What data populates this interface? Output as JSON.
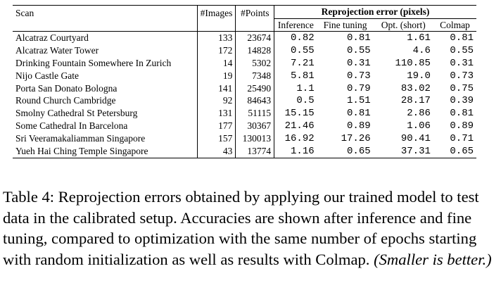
{
  "table": {
    "headers": {
      "scan": "Scan",
      "images": "#Images",
      "points": "#Points",
      "group": "Reprojection error (pixels)",
      "inference": "Inference",
      "fine_tuning": "Fine tuning",
      "opt_short": "Opt. (short)",
      "colmap": "Colmap"
    },
    "rows": [
      {
        "scan": "Alcatraz Courtyard",
        "images": "133",
        "points": "23674",
        "inference": "0.82",
        "fine_tuning": "0.81",
        "opt_short": "1.61",
        "colmap": "0.81"
      },
      {
        "scan": "Alcatraz Water Tower",
        "images": "172",
        "points": "14828",
        "inference": "0.55",
        "fine_tuning": "0.55",
        "opt_short": "4.6",
        "colmap": "0.55"
      },
      {
        "scan": "Drinking Fountain Somewhere In Zurich",
        "images": "14",
        "points": "5302",
        "inference": "7.21",
        "fine_tuning": "0.31",
        "opt_short": "110.85",
        "colmap": "0.31"
      },
      {
        "scan": "Nijo Castle Gate",
        "images": "19",
        "points": "7348",
        "inference": "5.81",
        "fine_tuning": "0.73",
        "opt_short": "19.0",
        "colmap": "0.73"
      },
      {
        "scan": "Porta San Donato Bologna",
        "images": "141",
        "points": "25490",
        "inference": "1.1",
        "fine_tuning": "0.79",
        "opt_short": "83.02",
        "colmap": "0.75"
      },
      {
        "scan": "Round Church Cambridge",
        "images": "92",
        "points": "84643",
        "inference": "0.5",
        "fine_tuning": "1.51",
        "opt_short": "28.17",
        "colmap": "0.39"
      },
      {
        "scan": "Smolny Cathedral St Petersburg",
        "images": "131",
        "points": "51115",
        "inference": "15.15",
        "fine_tuning": "0.81",
        "opt_short": "2.86",
        "colmap": "0.81"
      },
      {
        "scan": "Some Cathedral In Barcelona",
        "images": "177",
        "points": "30367",
        "inference": "21.46",
        "fine_tuning": "0.89",
        "opt_short": "1.06",
        "colmap": "0.89"
      },
      {
        "scan": "Sri Veeramakaliamman Singapore",
        "images": "157",
        "points": "130013",
        "inference": "16.92",
        "fine_tuning": "17.26",
        "opt_short": "90.41",
        "colmap": "0.71"
      },
      {
        "scan": "Yueh Hai Ching Temple Singapore",
        "images": "43",
        "points": "13774",
        "inference": "1.16",
        "fine_tuning": "0.65",
        "opt_short": "37.31",
        "colmap": "0.65"
      }
    ],
    "bold": [
      [
        false,
        true,
        false,
        true
      ],
      [
        true,
        true,
        false,
        true
      ],
      [
        false,
        true,
        false,
        true
      ],
      [
        false,
        true,
        false,
        true
      ],
      [
        false,
        false,
        false,
        true
      ],
      [
        false,
        false,
        false,
        true
      ],
      [
        false,
        true,
        false,
        true
      ],
      [
        false,
        true,
        false,
        true
      ],
      [
        false,
        false,
        false,
        true
      ],
      [
        false,
        true,
        false,
        true
      ]
    ]
  },
  "caption": {
    "text": "Table 4:  Reprojection errors obtained by applying our trained model to test data in the calibrated setup.  Accuracies are shown after inference and fine tuning, compared to optimization with the same number of epochs starting with random initialization as well as results with Colmap. ",
    "note": "(Smaller is better.)"
  }
}
